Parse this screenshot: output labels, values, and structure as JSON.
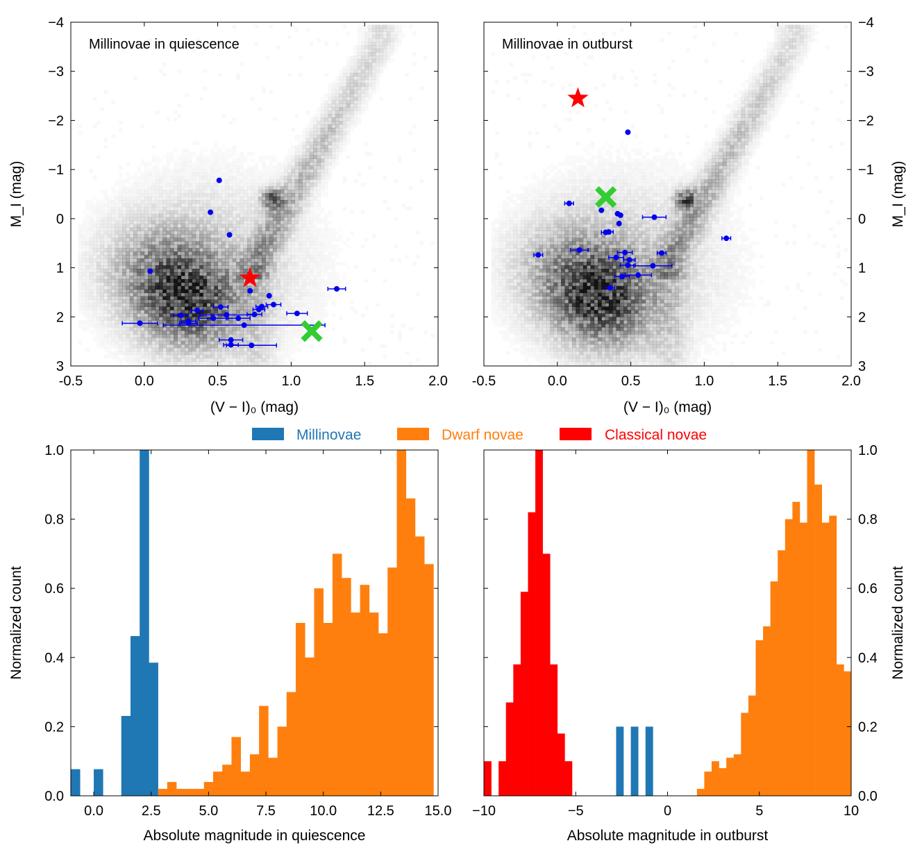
{
  "colors": {
    "millinovae": "#1f77b4",
    "dwarf_novae": "#ff7f0e",
    "classical_novae": "#ff0000",
    "points": "#0000ee",
    "star_marker": "#ff0000",
    "cross_marker": "#33cc33",
    "background_density": "#000000"
  },
  "legend": {
    "placement": "top-center, between rows",
    "items": [
      "Millinovae",
      "Dwarf novae",
      "Classical novae"
    ]
  },
  "chart_data": [
    {
      "type": "scatter",
      "panel": "top-left",
      "annotation": "Millinovae in quiescence",
      "xlabel": "(V − I)₀ (mag)",
      "ylabel": "M_I (mag)",
      "xlim": [
        -0.5,
        2.0
      ],
      "ylim": [
        3,
        -4
      ],
      "y_inverted": true,
      "xticks": [
        "-0.5",
        "0.0",
        "0.5",
        "1.0",
        "1.5",
        "2.0"
      ],
      "yticks": [
        "−4",
        "−3",
        "−2",
        "−1",
        "0",
        "1",
        "2",
        "3"
      ],
      "background": "greyscale 2D density histogram of field stars (main sequence and red clump near (0.85, -0.4))",
      "points": [
        {
          "x": 0.51,
          "y": -0.78,
          "xerr": 0.0
        },
        {
          "x": 0.45,
          "y": -0.13,
          "xerr": 0.0
        },
        {
          "x": 0.58,
          "y": 0.33,
          "xerr": 0.0
        },
        {
          "x": 0.04,
          "y": 1.07,
          "xerr": 0.0
        },
        {
          "x": 0.72,
          "y": 1.47,
          "xerr": 0.0
        },
        {
          "x": 1.31,
          "y": 1.43,
          "xerr": 0.06
        },
        {
          "x": 0.85,
          "y": 1.57,
          "xerr": 0.0
        },
        {
          "x": 0.88,
          "y": 1.75,
          "xerr": 0.05
        },
        {
          "x": 0.8,
          "y": 1.79,
          "xerr": 0.04
        },
        {
          "x": 0.78,
          "y": 1.85,
          "xerr": 0.04
        },
        {
          "x": 0.52,
          "y": 1.8,
          "xerr": 0.05
        },
        {
          "x": 0.36,
          "y": 1.87,
          "xerr": 0.04
        },
        {
          "x": 0.75,
          "y": 1.95,
          "xerr": 0.05
        },
        {
          "x": 1.04,
          "y": 1.93,
          "xerr": 0.07
        },
        {
          "x": 0.25,
          "y": 1.97,
          "xerr": 0.05
        },
        {
          "x": 0.56,
          "y": 1.96,
          "xerr": 0.18
        },
        {
          "x": 0.47,
          "y": 2.03,
          "xerr": 0.1
        },
        {
          "x": 0.64,
          "y": 2.03,
          "xerr": 0.08
        },
        {
          "x": 0.3,
          "y": 2.09,
          "xerr": 0.05
        },
        {
          "x": 0.3,
          "y": 2.13,
          "xerr": 0.06
        },
        {
          "x": -0.03,
          "y": 2.13,
          "xerr": 0.12
        },
        {
          "x": 0.68,
          "y": 2.17,
          "xerr": 0.55
        },
        {
          "x": 0.59,
          "y": 2.47,
          "xerr": 0.08
        },
        {
          "x": 0.59,
          "y": 2.57,
          "xerr": 0.05
        },
        {
          "x": 0.73,
          "y": 2.58,
          "xerr": 0.17
        }
      ],
      "special_markers": [
        {
          "shape": "star",
          "x": 0.72,
          "y": 1.21
        },
        {
          "shape": "cross",
          "x": 1.14,
          "y": 2.29
        }
      ]
    },
    {
      "type": "scatter",
      "panel": "top-right",
      "annotation": "Millinovae in outburst",
      "xlabel": "(V − I)₀ (mag)",
      "ylabel": "M_I (mag)",
      "xlim": [
        -0.5,
        2.0
      ],
      "ylim": [
        3,
        -4
      ],
      "y_inverted": true,
      "xticks": [
        "-0.5",
        "0.0",
        "0.5",
        "1.0",
        "1.5",
        "2.0"
      ],
      "yticks": [
        "−4",
        "−3",
        "−2",
        "−1",
        "0",
        "1",
        "2",
        "3"
      ],
      "background": "greyscale 2D density histogram of field stars (main sequence and red clump near (0.85, -0.4))",
      "points": [
        {
          "x": 0.48,
          "y": -1.76,
          "xerr": 0.0
        },
        {
          "x": 0.08,
          "y": -0.31,
          "xerr": 0.03
        },
        {
          "x": 0.3,
          "y": -0.17,
          "xerr": 0.0
        },
        {
          "x": 0.41,
          "y": -0.1,
          "xerr": 0.0
        },
        {
          "x": 0.43,
          "y": -0.07,
          "xerr": 0.0
        },
        {
          "x": 0.66,
          "y": -0.03,
          "xerr": 0.08
        },
        {
          "x": 0.42,
          "y": 0.1,
          "xerr": 0.0
        },
        {
          "x": 0.33,
          "y": 0.28,
          "xerr": 0.03
        },
        {
          "x": 0.35,
          "y": 0.27,
          "xerr": 0.03
        },
        {
          "x": 1.15,
          "y": 0.4,
          "xerr": 0.03
        },
        {
          "x": -0.13,
          "y": 0.74,
          "xerr": 0.03
        },
        {
          "x": 0.15,
          "y": 0.64,
          "xerr": 0.06
        },
        {
          "x": 0.46,
          "y": 0.69,
          "xerr": 0.05
        },
        {
          "x": 0.71,
          "y": 0.7,
          "xerr": 0.03
        },
        {
          "x": 0.4,
          "y": 0.79,
          "xerr": 0.05
        },
        {
          "x": 0.49,
          "y": 0.84,
          "xerr": 0.04
        },
        {
          "x": 0.48,
          "y": 0.95,
          "xerr": 0.05
        },
        {
          "x": 0.65,
          "y": 0.96,
          "xerr": 0.13
        },
        {
          "x": 0.55,
          "y": 1.15,
          "xerr": 0.09
        },
        {
          "x": 0.44,
          "y": 1.18,
          "xerr": 0.05
        },
        {
          "x": 0.36,
          "y": 1.41,
          "xerr": 0.03
        }
      ],
      "special_markers": [
        {
          "shape": "star",
          "x": 0.14,
          "y": -2.45
        },
        {
          "shape": "cross",
          "x": 0.33,
          "y": -0.44
        }
      ]
    },
    {
      "type": "bar",
      "histogram": true,
      "panel": "bottom-left",
      "xlabel": "Absolute magnitude in quiescence",
      "ylabel": "Normalized count",
      "xlim": [
        -1.0,
        15.0
      ],
      "ylim": [
        0.0,
        1.0
      ],
      "xticks": [
        "0.0",
        "2.5",
        "5.0",
        "7.5",
        "10.0",
        "12.5",
        "15.0"
      ],
      "yticks": [
        "0.0",
        "0.2",
        "0.4",
        "0.6",
        "0.8",
        "1.0"
      ],
      "series": [
        {
          "name": "Millinovae",
          "color_key": "millinovae",
          "bins": [
            [
              -1.0,
              -0.6,
              0.077
            ],
            [
              -0.6,
              0.0,
              0.0
            ],
            [
              0.0,
              0.4,
              0.077
            ],
            [
              0.4,
              1.2,
              0.0
            ],
            [
              1.2,
              1.6,
              0.231
            ],
            [
              1.6,
              2.0,
              0.462
            ],
            [
              2.0,
              2.4,
              1.0
            ],
            [
              2.4,
              2.8,
              0.385
            ]
          ]
        },
        {
          "name": "Dwarf novae",
          "color_key": "dwarf_novae",
          "bins": [
            [
              2.8,
              3.2,
              0.02
            ],
            [
              3.2,
              3.6,
              0.04
            ],
            [
              3.6,
              4.0,
              0.02
            ],
            [
              4.0,
              4.8,
              0.02
            ],
            [
              4.8,
              5.2,
              0.04
            ],
            [
              5.2,
              5.6,
              0.07
            ],
            [
              5.6,
              6.0,
              0.09
            ],
            [
              6.0,
              6.4,
              0.17
            ],
            [
              6.4,
              6.8,
              0.07
            ],
            [
              6.8,
              7.2,
              0.12
            ],
            [
              7.2,
              7.6,
              0.26
            ],
            [
              7.6,
              8.0,
              0.11
            ],
            [
              8.0,
              8.4,
              0.2
            ],
            [
              8.4,
              8.8,
              0.3
            ],
            [
              8.8,
              9.2,
              0.5
            ],
            [
              9.2,
              9.6,
              0.4
            ],
            [
              9.6,
              10.0,
              0.6
            ],
            [
              10.0,
              10.4,
              0.5
            ],
            [
              10.4,
              10.8,
              0.7
            ],
            [
              10.8,
              11.2,
              0.63
            ],
            [
              11.2,
              11.6,
              0.53
            ],
            [
              11.6,
              12.0,
              0.61
            ],
            [
              12.0,
              12.4,
              0.53
            ],
            [
              12.4,
              12.8,
              0.47
            ],
            [
              12.8,
              13.2,
              0.66
            ],
            [
              13.2,
              13.6,
              1.0
            ],
            [
              13.6,
              14.0,
              0.86
            ],
            [
              14.0,
              14.4,
              0.75
            ],
            [
              14.4,
              14.8,
              0.67
            ]
          ]
        }
      ]
    },
    {
      "type": "bar",
      "histogram": true,
      "panel": "bottom-right",
      "xlabel": "Absolute magnitude in outburst",
      "ylabel": "Normalized count",
      "xlim": [
        -10.0,
        10.0
      ],
      "ylim": [
        0.0,
        1.0
      ],
      "xticks": [
        "−10",
        "−5",
        "0",
        "5",
        "10"
      ],
      "yticks": [
        "0.0",
        "0.2",
        "0.4",
        "0.6",
        "0.8",
        "1.0"
      ],
      "series": [
        {
          "name": "Classical novae",
          "color_key": "classical_novae",
          "bins": [
            [
              -10.0,
              -9.6,
              0.1
            ],
            [
              -9.6,
              -9.2,
              0.0
            ],
            [
              -9.2,
              -8.8,
              0.1
            ],
            [
              -8.8,
              -8.4,
              0.27
            ],
            [
              -8.4,
              -8.0,
              0.38
            ],
            [
              -8.0,
              -7.6,
              0.59
            ],
            [
              -7.6,
              -7.2,
              0.82
            ],
            [
              -7.2,
              -6.8,
              1.0
            ],
            [
              -6.8,
              -6.4,
              0.7
            ],
            [
              -6.4,
              -6.0,
              0.38
            ],
            [
              -6.0,
              -5.6,
              0.18
            ],
            [
              -5.6,
              -5.2,
              0.1
            ]
          ]
        },
        {
          "name": "Millinovae",
          "color_key": "millinovae",
          "bins": [
            [
              -2.8,
              -2.4,
              0.2
            ],
            [
              -2.4,
              -2.0,
              0.0
            ],
            [
              -2.0,
              -1.6,
              0.2
            ],
            [
              -1.6,
              -1.2,
              0.0
            ],
            [
              -1.2,
              -0.8,
              0.2
            ],
            [
              -0.8,
              -0.4,
              0.0
            ],
            [
              -0.4,
              0.0,
              0.0
            ],
            [
              0.0,
              0.4,
              0.0
            ],
            [
              0.4,
              0.8,
              0.0
            ]
          ]
        },
        {
          "name": "Dwarf novae",
          "color_key": "dwarf_novae",
          "bins": [
            [
              1.6,
              2.0,
              0.02
            ],
            [
              2.0,
              2.4,
              0.07
            ],
            [
              2.4,
              2.8,
              0.1
            ],
            [
              2.8,
              3.2,
              0.08
            ],
            [
              3.2,
              3.6,
              0.11
            ],
            [
              3.6,
              4.0,
              0.12
            ],
            [
              4.0,
              4.4,
              0.24
            ],
            [
              4.4,
              4.8,
              0.29
            ],
            [
              4.8,
              5.2,
              0.45
            ],
            [
              5.2,
              5.6,
              0.49
            ],
            [
              5.6,
              6.0,
              0.62
            ],
            [
              6.0,
              6.4,
              0.71
            ],
            [
              6.4,
              6.8,
              0.8
            ],
            [
              6.8,
              7.2,
              0.85
            ],
            [
              7.2,
              7.6,
              0.79
            ],
            [
              7.6,
              8.0,
              1.0
            ],
            [
              8.0,
              8.4,
              0.9
            ],
            [
              8.4,
              8.8,
              0.79
            ],
            [
              8.8,
              9.2,
              0.81
            ],
            [
              9.2,
              9.6,
              0.38
            ],
            [
              9.6,
              10.0,
              0.36
            ]
          ]
        }
      ]
    }
  ]
}
